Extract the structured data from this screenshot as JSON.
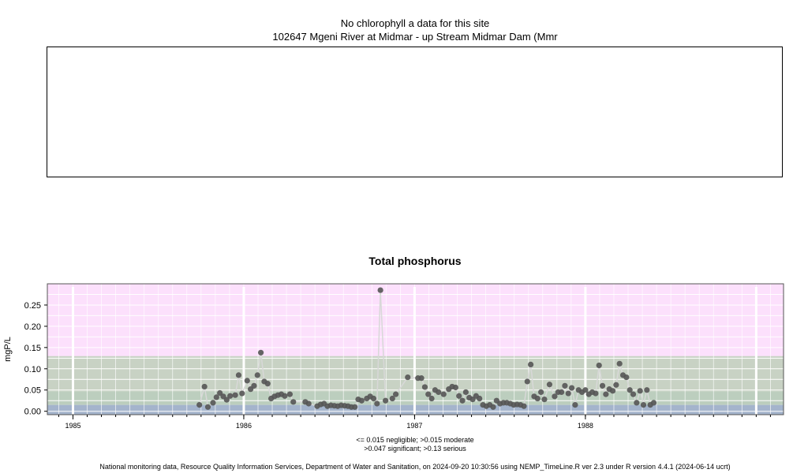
{
  "header": {
    "line1": "No chlorophyll a data for this site",
    "line2": "102647 Mgeni River at Midmar - up Stream Midmar Dam (Mmr"
  },
  "footer": {
    "legend_line1": "<= 0.015 negligible; >0.015 moderate",
    "legend_line2": ">0.047 significant; >0.13 serious",
    "credit": "National monitoring data, Resource Quality Information Services, Department of Water and Sanitation, on 2024-09-20 10:30:56 using NEMP_TimeLine.R ver 2.3 under R version 4.4.1 (2024-06-14 ucrt)"
  },
  "colors": {
    "negligible_band": "#a4b4cc",
    "moderate_band": "#bccebe",
    "significant_band": "#c8d2c4",
    "serious_band": "#fce0fc",
    "points": "#555555",
    "line": "#d8d8d8",
    "grid": "#ffffff"
  },
  "chart_data": {
    "type": "line",
    "title": "Total phosphorus",
    "xlabel": "",
    "ylabel": "mgP/L",
    "x_unit": "decimal year",
    "xlim": [
      1984.85,
      1989.16
    ],
    "ylim": [
      -0.008,
      0.3
    ],
    "x_ticks": [
      1985,
      1986,
      1987,
      1988
    ],
    "x_tick_labels": [
      "1985",
      "1986",
      "1987",
      "1988"
    ],
    "y_ticks": [
      0.0,
      0.05,
      0.1,
      0.15,
      0.2,
      0.25
    ],
    "y_tick_labels": [
      "0.00",
      "0.05",
      "0.10",
      "0.15",
      "0.20",
      "0.25"
    ],
    "thresholds": [
      {
        "label": "negligible",
        "from": -0.008,
        "to": 0.015
      },
      {
        "label": "moderate",
        "from": 0.015,
        "to": 0.047
      },
      {
        "label": "significant",
        "from": 0.047,
        "to": 0.13
      },
      {
        "label": "serious",
        "from": 0.13,
        "to": 0.3
      }
    ],
    "grid": true,
    "series": [
      {
        "name": "",
        "points": [
          [
            1985.74,
            0.015
          ],
          [
            1985.77,
            0.058
          ],
          [
            1985.79,
            0.01
          ],
          [
            1985.82,
            0.02
          ],
          [
            1985.84,
            0.033
          ],
          [
            1985.86,
            0.043
          ],
          [
            1985.88,
            0.035
          ],
          [
            1985.9,
            0.027
          ],
          [
            1985.92,
            0.036
          ],
          [
            1985.95,
            0.038
          ],
          [
            1985.97,
            0.085
          ],
          [
            1985.99,
            0.042
          ],
          [
            1986.02,
            0.072
          ],
          [
            1986.04,
            0.052
          ],
          [
            1986.06,
            0.06
          ],
          [
            1986.08,
            0.085
          ],
          [
            1986.1,
            0.138
          ],
          [
            1986.12,
            0.07
          ],
          [
            1986.14,
            0.065
          ],
          [
            1986.16,
            0.03
          ],
          [
            1986.18,
            0.035
          ],
          [
            1986.2,
            0.038
          ],
          [
            1986.22,
            0.04
          ],
          [
            1986.24,
            0.036
          ],
          [
            1986.27,
            0.04
          ],
          [
            1986.29,
            0.022
          ],
          [
            1986.36,
            0.022
          ],
          [
            1986.38,
            0.018
          ],
          [
            1986.43,
            0.012
          ],
          [
            1986.45,
            0.016
          ],
          [
            1986.47,
            0.018
          ],
          [
            1986.49,
            0.012
          ],
          [
            1986.51,
            0.014
          ],
          [
            1986.53,
            0.013
          ],
          [
            1986.55,
            0.012
          ],
          [
            1986.57,
            0.014
          ],
          [
            1986.59,
            0.013
          ],
          [
            1986.61,
            0.012
          ],
          [
            1986.63,
            0.01
          ],
          [
            1986.65,
            0.01
          ],
          [
            1986.67,
            0.028
          ],
          [
            1986.69,
            0.025
          ],
          [
            1986.72,
            0.03
          ],
          [
            1986.74,
            0.035
          ],
          [
            1986.76,
            0.03
          ],
          [
            1986.78,
            0.018
          ],
          [
            1986.8,
            0.285
          ],
          [
            1986.83,
            0.025
          ],
          [
            1986.87,
            0.03
          ],
          [
            1986.89,
            0.04
          ],
          [
            1986.96,
            0.08
          ],
          [
            1987.02,
            0.078
          ],
          [
            1987.04,
            0.078
          ],
          [
            1987.06,
            0.057
          ],
          [
            1987.08,
            0.04
          ],
          [
            1987.1,
            0.03
          ],
          [
            1987.12,
            0.05
          ],
          [
            1987.14,
            0.045
          ],
          [
            1987.17,
            0.04
          ],
          [
            1987.2,
            0.052
          ],
          [
            1987.22,
            0.058
          ],
          [
            1987.24,
            0.056
          ],
          [
            1987.26,
            0.036
          ],
          [
            1987.28,
            0.025
          ],
          [
            1987.3,
            0.045
          ],
          [
            1987.32,
            0.032
          ],
          [
            1987.34,
            0.028
          ],
          [
            1987.36,
            0.036
          ],
          [
            1987.38,
            0.03
          ],
          [
            1987.4,
            0.015
          ],
          [
            1987.42,
            0.012
          ],
          [
            1987.44,
            0.015
          ],
          [
            1987.46,
            0.01
          ],
          [
            1987.48,
            0.025
          ],
          [
            1987.5,
            0.018
          ],
          [
            1987.52,
            0.02
          ],
          [
            1987.54,
            0.02
          ],
          [
            1987.56,
            0.018
          ],
          [
            1987.58,
            0.015
          ],
          [
            1987.6,
            0.016
          ],
          [
            1987.62,
            0.015
          ],
          [
            1987.64,
            0.012
          ],
          [
            1987.66,
            0.07
          ],
          [
            1987.68,
            0.11
          ],
          [
            1987.7,
            0.035
          ],
          [
            1987.72,
            0.03
          ],
          [
            1987.74,
            0.045
          ],
          [
            1987.76,
            0.028
          ],
          [
            1987.79,
            0.063
          ],
          [
            1987.82,
            0.035
          ],
          [
            1987.84,
            0.045
          ],
          [
            1987.86,
            0.045
          ],
          [
            1987.88,
            0.06
          ],
          [
            1987.9,
            0.042
          ],
          [
            1987.92,
            0.055
          ],
          [
            1987.94,
            0.015
          ],
          [
            1987.96,
            0.05
          ],
          [
            1987.98,
            0.045
          ],
          [
            1988.0,
            0.05
          ],
          [
            1988.02,
            0.04
          ],
          [
            1988.04,
            0.045
          ],
          [
            1988.06,
            0.042
          ],
          [
            1988.08,
            0.108
          ],
          [
            1988.1,
            0.06
          ],
          [
            1988.12,
            0.04
          ],
          [
            1988.14,
            0.052
          ],
          [
            1988.16,
            0.048
          ],
          [
            1988.18,
            0.062
          ],
          [
            1988.2,
            0.112
          ],
          [
            1988.22,
            0.085
          ],
          [
            1988.24,
            0.08
          ],
          [
            1988.26,
            0.05
          ],
          [
            1988.28,
            0.04
          ],
          [
            1988.3,
            0.02
          ],
          [
            1988.32,
            0.048
          ],
          [
            1988.34,
            0.015
          ],
          [
            1988.36,
            0.05
          ],
          [
            1988.38,
            0.015
          ],
          [
            1988.4,
            0.02
          ]
        ]
      }
    ]
  }
}
